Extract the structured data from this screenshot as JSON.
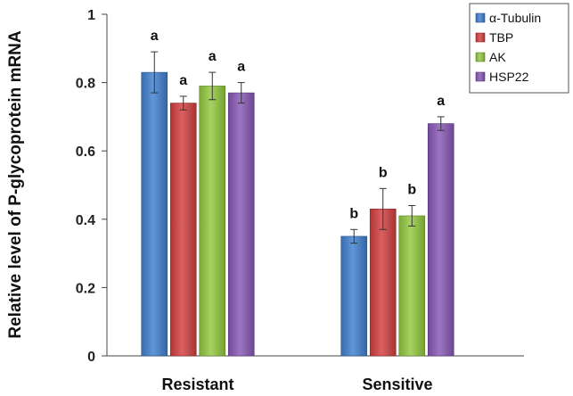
{
  "chart_data": {
    "type": "bar",
    "ylabel": "Relative level of P-glycoprotein mRNA",
    "xlabel": "",
    "ylim": [
      0,
      1
    ],
    "yticks": [
      "0",
      "0.2",
      "0.4",
      "0.6",
      "0.8",
      "1"
    ],
    "grid": false,
    "legend_position": "top-right",
    "categories": [
      "Resistant",
      "Sensitive"
    ],
    "series": [
      {
        "name": "α-Tubulin",
        "color": "#3F7FCF",
        "values": [
          0.83,
          0.35
        ],
        "errors": [
          0.06,
          0.02
        ],
        "labels": [
          "a",
          "b"
        ]
      },
      {
        "name": "TBP",
        "color": "#D23E3E",
        "values": [
          0.74,
          0.43
        ],
        "errors": [
          0.02,
          0.06
        ],
        "labels": [
          "a",
          "b"
        ]
      },
      {
        "name": "AK",
        "color": "#92C83E",
        "values": [
          0.79,
          0.41
        ],
        "errors": [
          0.04,
          0.03
        ],
        "labels": [
          "a",
          "b"
        ]
      },
      {
        "name": "HSP22",
        "color": "#8757B5",
        "values": [
          0.77,
          0.68
        ],
        "errors": [
          0.03,
          0.02
        ],
        "labels": [
          "a",
          "a"
        ]
      }
    ]
  }
}
